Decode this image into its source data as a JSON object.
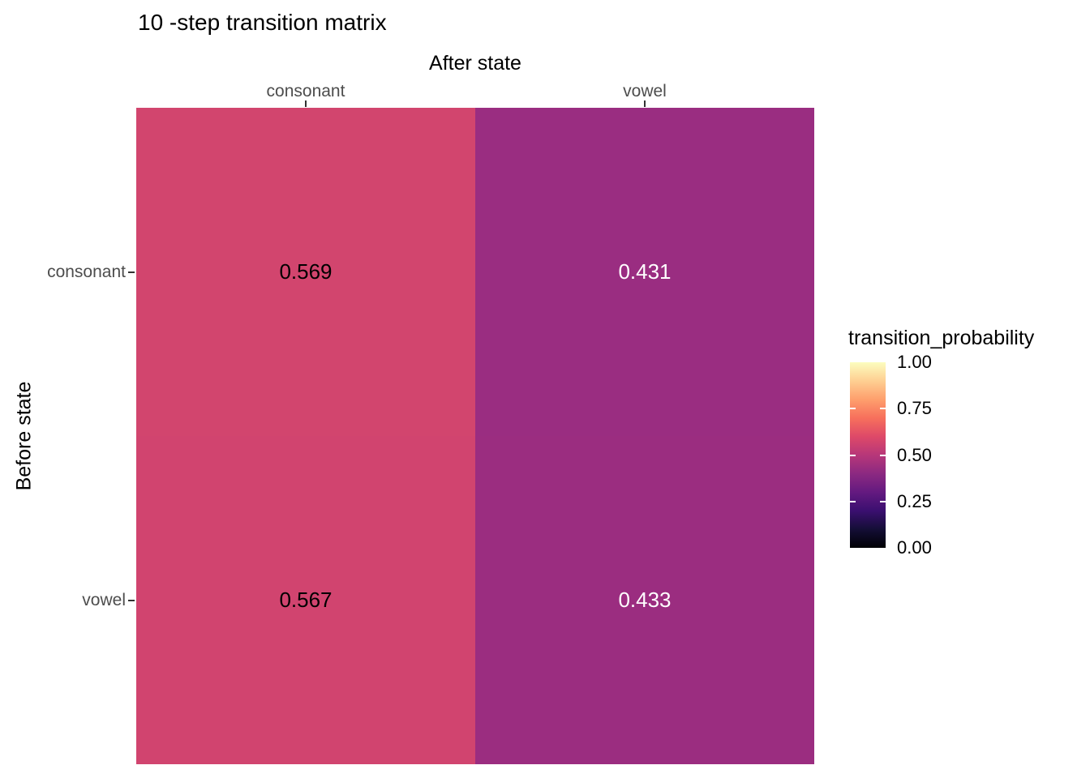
{
  "page": {
    "background": "#ffffff"
  },
  "chart_data": {
    "type": "heatmap",
    "title": "10 -step transition matrix",
    "xlabel": "After state",
    "ylabel": "Before state",
    "x_categories": [
      "consonant",
      "vowel"
    ],
    "y_categories": [
      "consonant",
      "vowel"
    ],
    "series_note": "rows = Before state (top to bottom), cols = After state (left to right)",
    "values": [
      [
        0.569,
        0.431
      ],
      [
        0.567,
        0.433
      ]
    ],
    "cells": [
      {
        "row": "consonant",
        "col": "consonant",
        "value": 0.569,
        "label": "0.569",
        "color": "#d2456e",
        "text_color": "#000000"
      },
      {
        "row": "consonant",
        "col": "vowel",
        "value": 0.431,
        "label": "0.431",
        "color": "#9a2d81",
        "text_color": "#ffffff"
      },
      {
        "row": "vowel",
        "col": "consonant",
        "value": 0.567,
        "label": "0.567",
        "color": "#d1446f",
        "text_color": "#000000"
      },
      {
        "row": "vowel",
        "col": "vowel",
        "value": 0.433,
        "label": "0.433",
        "color": "#9b2d80",
        "text_color": "#ffffff"
      }
    ],
    "legend": {
      "title": "transition_probability",
      "position": "right",
      "range": [
        0,
        1
      ],
      "tick_labels": [
        "1.00",
        "0.75",
        "0.50",
        "0.25",
        "0.00"
      ],
      "tick_values": [
        1.0,
        0.75,
        0.5,
        0.25,
        0.0
      ],
      "inner_tick_values": [
        0.75,
        0.5,
        0.25
      ],
      "colormap": "magma",
      "gradient_colors_bottom_to_top": [
        "#000004",
        "#140e36",
        "#3b0f70",
        "#641a80",
        "#8c2981",
        "#b73779",
        "#de4968",
        "#f7705c",
        "#fe9f6d",
        "#fecf92",
        "#fcfdbf"
      ]
    },
    "styles": {
      "axis_text_color": "#4d4d4d",
      "tick_mark_color": "#333333",
      "title_color": "#000000",
      "background": "#ffffff",
      "grid": "off"
    }
  }
}
